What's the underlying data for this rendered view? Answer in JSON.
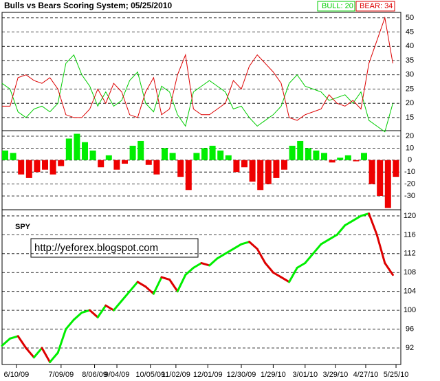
{
  "chart_data": [
    {
      "type": "line",
      "title": "Bulls vs Bears Scoring System;  05/25/2010",
      "x": [
        0,
        5,
        10,
        15,
        20,
        25,
        30,
        35,
        40,
        45,
        50,
        55,
        60,
        65,
        70,
        75,
        80,
        85,
        90,
        95,
        100,
        105,
        110,
        115,
        120,
        125,
        130,
        135,
        140,
        145,
        150,
        155,
        160,
        165,
        170,
        175,
        180,
        185,
        190,
        195,
        200,
        205,
        210,
        215,
        220,
        225,
        230,
        235,
        240,
        245
      ],
      "xlim": [
        0,
        250
      ],
      "ylim": [
        10.4,
        51.9
      ],
      "yticks": [
        15,
        20,
        25,
        30,
        35,
        40,
        45,
        50
      ],
      "grid": true,
      "series": [
        {
          "name": "BULL: 20",
          "color": "#00cc00",
          "values": [
            27,
            25,
            17,
            15,
            18,
            19,
            17,
            20,
            34,
            37,
            30,
            26,
            19,
            24,
            19,
            21,
            28,
            31,
            20,
            17,
            26,
            24,
            16,
            12,
            24,
            26,
            28,
            26,
            24,
            18,
            19,
            15,
            12,
            14,
            16,
            19,
            27,
            30,
            26,
            25,
            24,
            21,
            22,
            23,
            20,
            24,
            14,
            12,
            10,
            20
          ]
        },
        {
          "name": "BEAR: 34",
          "color": "#dd0000",
          "values": [
            19,
            19,
            29,
            30,
            28,
            27,
            29,
            25,
            16,
            15,
            15,
            18,
            25,
            20,
            27,
            24,
            16,
            15,
            24,
            29,
            16,
            18,
            30,
            37,
            18,
            16,
            16,
            18,
            20,
            28,
            25,
            33,
            37,
            34,
            31,
            27,
            15,
            14,
            16,
            17,
            18,
            23,
            20,
            19,
            21,
            18,
            34,
            42,
            50,
            34
          ]
        }
      ]
    },
    {
      "type": "bar",
      "x": [
        0,
        5,
        10,
        15,
        20,
        25,
        30,
        35,
        40,
        45,
        50,
        55,
        60,
        65,
        70,
        75,
        80,
        85,
        90,
        95,
        100,
        105,
        110,
        115,
        120,
        125,
        130,
        135,
        140,
        145,
        150,
        155,
        160,
        165,
        170,
        175,
        180,
        185,
        190,
        195,
        200,
        205,
        210,
        215,
        220,
        225,
        230,
        235,
        240,
        245
      ],
      "xlim": [
        0,
        250
      ],
      "ylim": [
        -41.5,
        24.6
      ],
      "yticks": [
        -30,
        -20,
        -10,
        0,
        10,
        20
      ],
      "grid": true,
      "up_color": "#00ee00",
      "down_color": "#ee0000",
      "values": [
        8,
        6,
        -12,
        -15,
        -10,
        -8,
        -12,
        -5,
        18,
        22,
        15,
        8,
        -6,
        4,
        -8,
        -3,
        12,
        16,
        -4,
        -12,
        10,
        6,
        -14,
        -25,
        6,
        10,
        12,
        8,
        4,
        -10,
        -6,
        -18,
        -25,
        -20,
        -15,
        -8,
        12,
        16,
        10,
        8,
        6,
        -2,
        2,
        4,
        -1,
        6,
        -20,
        -30,
        -40,
        -14
      ]
    },
    {
      "type": "line",
      "annotation": "http://yeforex.blogspot.com",
      "x": [
        0,
        5,
        10,
        15,
        20,
        25,
        30,
        35,
        40,
        45,
        50,
        55,
        60,
        65,
        70,
        75,
        80,
        85,
        90,
        95,
        100,
        105,
        110,
        115,
        120,
        125,
        130,
        135,
        140,
        145,
        150,
        155,
        160,
        165,
        170,
        175,
        180,
        185,
        190,
        195,
        200,
        205,
        210,
        215,
        220,
        225,
        230,
        235,
        240,
        245
      ],
      "xlim": [
        0,
        250
      ],
      "ylim": [
        88.5,
        121.3
      ],
      "yticks": [
        92,
        96,
        100,
        104,
        108,
        112,
        116,
        120
      ],
      "grid": true,
      "xticks": [
        {
          "value": 9,
          "label": "6/10/09"
        },
        {
          "value": 37,
          "label": "7/09/09"
        },
        {
          "value": 58,
          "label": "8/06/09"
        },
        {
          "value": 72,
          "label": "9/04/09"
        },
        {
          "value": 93,
          "label": "10/05/09"
        },
        {
          "value": 109,
          "label": "11/02/09"
        },
        {
          "value": 129,
          "label": "12/01/09"
        },
        {
          "value": 150,
          "label": "12/30/09"
        },
        {
          "value": 170,
          "label": "1/29/10"
        },
        {
          "value": 190,
          "label": "3/01/10"
        },
        {
          "value": 209,
          "label": "3/29/10"
        },
        {
          "value": 228,
          "label": "4/27/10"
        },
        {
          "value": 247,
          "label": "5/25/10"
        }
      ],
      "rise_color": "#00ee00",
      "fall_color": "#dd0000",
      "series": [
        {
          "name": "SPY",
          "values": [
            92.5,
            94,
            94.5,
            92,
            90,
            92,
            89,
            91,
            96,
            98,
            99.5,
            100,
            98.5,
            101,
            100,
            102,
            104,
            106,
            105,
            103.5,
            107,
            106.5,
            104,
            107.5,
            109,
            110,
            109.5,
            111,
            112,
            113,
            114,
            114.5,
            113,
            110,
            108,
            107,
            106,
            109,
            110,
            112,
            114,
            115,
            116,
            118,
            119,
            120,
            120.5,
            116,
            110,
            107.5
          ]
        }
      ]
    }
  ]
}
